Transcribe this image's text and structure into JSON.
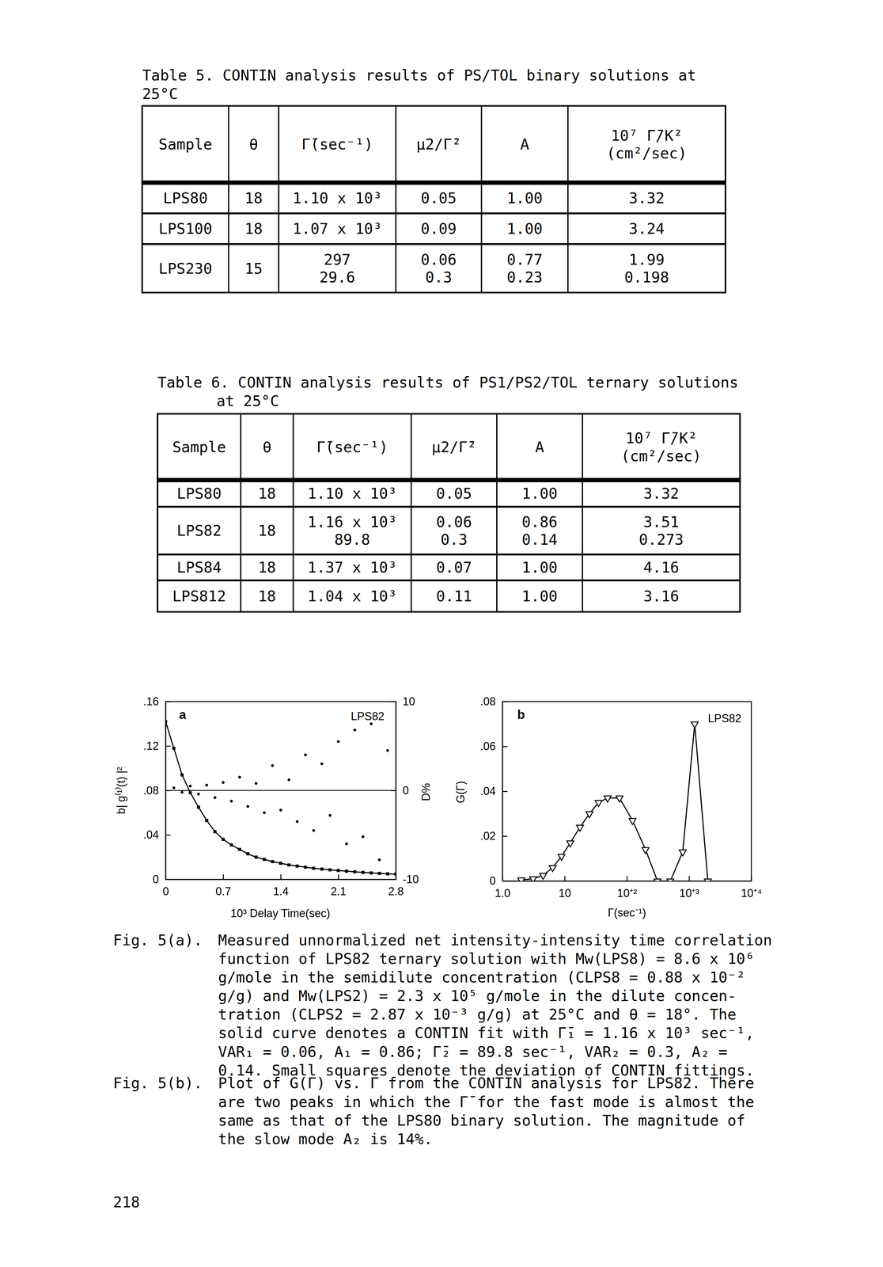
{
  "tables": [
    {
      "title_lines": [
        "Table 5. CONTIN analysis results of PS/TOL binary solutions at",
        "25°C"
      ],
      "header": [
        "Sample",
        "θ",
        "Γ̄(sec⁻¹)",
        "μ2/Γ̄²",
        "A",
        [
          "10⁷ Γ̄/K²",
          "(cm²/sec)"
        ]
      ],
      "rows": [
        [
          "LPS80",
          "18",
          "1.10 x 10³",
          "0.05",
          "1.00",
          "3.32"
        ],
        [
          "LPS100",
          "18",
          "1.07 x 10³",
          "0.09",
          "1.00",
          "3.24"
        ],
        [
          "LPS230",
          "15",
          [
            "297",
            "29.6"
          ],
          [
            "0.06",
            "0.3"
          ],
          [
            "0.77",
            "0.23"
          ],
          [
            "1.99",
            "0.198"
          ]
        ]
      ]
    },
    {
      "title_lines": [
        "Table 6. CONTIN analysis results of PS1/PS2/TOL ternary solutions",
        "at 25°C"
      ],
      "header": [
        "Sample",
        "θ",
        "Γ̄(sec⁻¹)",
        "μ2/Γ̄²",
        "A",
        [
          "10⁷ Γ̄/K²",
          "(cm²/sec)"
        ]
      ],
      "rows": [
        [
          "LPS80",
          "18",
          "1.10 x 10³",
          "0.05",
          "1.00",
          "3.32"
        ],
        [
          "LPS82",
          "18",
          [
            "1.16 x 10³",
            "89.8"
          ],
          [
            "0.06",
            "0.3"
          ],
          [
            "0.86",
            "0.14"
          ],
          [
            "3.51",
            "0.273"
          ]
        ],
        [
          "LPS84",
          "18",
          "1.37 x 10³",
          "0.07",
          "1.00",
          "4.16"
        ],
        [
          "LPS812",
          "18",
          "1.04 x 10³",
          "0.11",
          "1.00",
          "3.16"
        ]
      ]
    }
  ],
  "chart_data": [
    {
      "type": "line",
      "panel_label": "a",
      "annotation": "LPS82",
      "x_label": "10³ Delay Time(sec)",
      "y_label": "b| g⁽¹⁾(t) |²",
      "y2_label": "D%",
      "xlim": [
        0,
        2.8
      ],
      "xticks": [
        0,
        0.7,
        1.4,
        2.1,
        2.8
      ],
      "ylim": [
        0,
        0.16
      ],
      "yticks": [
        0,
        {
          "value": 0.04,
          "label": ".04"
        },
        {
          "value": 0.08,
          "label": ".08"
        },
        {
          "value": 0.12,
          "label": ".12"
        },
        {
          "value": 0.16,
          "label": ".16"
        }
      ],
      "y2lim": [
        -10,
        10
      ],
      "y2ticks": [
        -10,
        0,
        10
      ],
      "reference_lines": [
        {
          "axis": "y2",
          "value": 0
        }
      ],
      "series": [
        {
          "type": "line",
          "marker": "square",
          "x": [
            0,
            0.1,
            0.2,
            0.3,
            0.4,
            0.5,
            0.6,
            0.7,
            0.8,
            0.9,
            1.0,
            1.1,
            1.2,
            1.3,
            1.4,
            1.5,
            1.6,
            1.7,
            1.8,
            1.9,
            2.0,
            2.1,
            2.2,
            2.3,
            2.4,
            2.5,
            2.6,
            2.7,
            2.8
          ],
          "values": [
            0.142,
            0.118,
            0.094,
            0.078,
            0.065,
            0.053,
            0.043,
            0.036,
            0.031,
            0.027,
            0.023,
            0.02,
            0.018,
            0.016,
            0.0145,
            0.013,
            0.012,
            0.011,
            0.01,
            0.0093,
            0.0086,
            0.008,
            0.0074,
            0.0068,
            0.0063,
            0.0058,
            0.0054,
            0.005,
            0.0047
          ]
        },
        {
          "type": "scatter",
          "marker": "dot",
          "axis": "y2",
          "x": [
            0.1,
            0.2,
            0.3,
            0.4,
            0.5,
            0.6,
            0.7,
            0.8,
            0.9,
            1.0,
            1.1,
            1.2,
            1.3,
            1.4,
            1.5,
            1.6,
            1.7,
            1.8,
            1.9,
            2.0,
            2.1,
            2.2,
            2.3,
            2.4,
            2.5,
            2.6,
            2.7
          ],
          "values": [
            0.3,
            -0.2,
            0.5,
            -0.4,
            0.6,
            -0.8,
            0.9,
            -1.2,
            1.5,
            -1.8,
            0.8,
            -2.5,
            2.8,
            -2.2,
            1.2,
            -3.5,
            4.0,
            -4.5,
            3.0,
            -2.8,
            5.5,
            -6.0,
            6.8,
            -5.2,
            7.5,
            -7.8,
            4.5
          ]
        }
      ]
    },
    {
      "type": "line",
      "panel_label": "b",
      "annotation": "LPS82",
      "x_label": "Γ(sec⁻¹)",
      "y_label": "G(Γ)",
      "log": "x",
      "xlim": [
        1,
        10000
      ],
      "xticks": [
        {
          "value": 1,
          "label": "1.0"
        },
        10,
        {
          "value": 100,
          "label": "10⁺²"
        },
        {
          "value": 1000,
          "label": "10⁺³"
        },
        {
          "value": 10000,
          "label": "10⁺⁴"
        }
      ],
      "ylim": [
        0,
        0.08
      ],
      "yticks": [
        0,
        {
          "value": 0.02,
          "label": ".02"
        },
        {
          "value": 0.04,
          "label": ".04"
        },
        {
          "value": 0.06,
          "label": ".06"
        },
        {
          "value": 0.08,
          "label": ".08"
        }
      ],
      "series": [
        {
          "type": "line",
          "marker": "triangle-down",
          "x": [
            2,
            3.1,
            4.5,
            6.4,
            8.9,
            12.3,
            17.6,
            25,
            35,
            49,
            76,
            123,
            199,
            310,
            500,
            790,
            1230,
            2000
          ],
          "values": [
            0.0005,
            0.001,
            0.0025,
            0.006,
            0.011,
            0.017,
            0.024,
            0.03,
            0.035,
            0.037,
            0.037,
            0.027,
            0.014,
            0,
            0,
            0.013,
            0.07,
            0
          ]
        }
      ]
    }
  ],
  "captions": [
    {
      "label": "Fig. 5(a).",
      "lines": [
        "Measured unnormalized net intensity-intensity time correlation",
        "function of LPS82 ternary solution with Mw(LPS8) = 8.6 x 10⁶",
        "g/mole in the semidilute concentration (CLPS8 = 0.88 x 10⁻²",
        "g/g) and Mw(LPS2) = 2.3 x 10⁵ g/mole in the dilute concen-",
        "tration (CLPS2 = 2.87 x 10⁻³ g/g) at 25°C and θ = 18°. The",
        "solid curve denotes a CONTIN fit with Γ̄₁ = 1.16 x 10³ sec⁻¹,",
        "VAR₁ = 0.06, A₁ = 0.86; Γ̄₂ = 89.8 sec⁻¹, VAR₂ = 0.3, A₂ =",
        "0.14. Small squares denote the deviation of CONTIN fittings."
      ]
    },
    {
      "label": "Fig. 5(b).",
      "lines": [
        "Plot of G(Γ) vs. Γ from the CONTIN analysis for LPS82. There",
        "are two peaks in which the Γ̄ for the fast mode is almost the",
        "same as that of the LPS80 binary solution. The magnitude of",
        "the slow mode A₂ is 14%."
      ]
    }
  ],
  "page_number": "218"
}
